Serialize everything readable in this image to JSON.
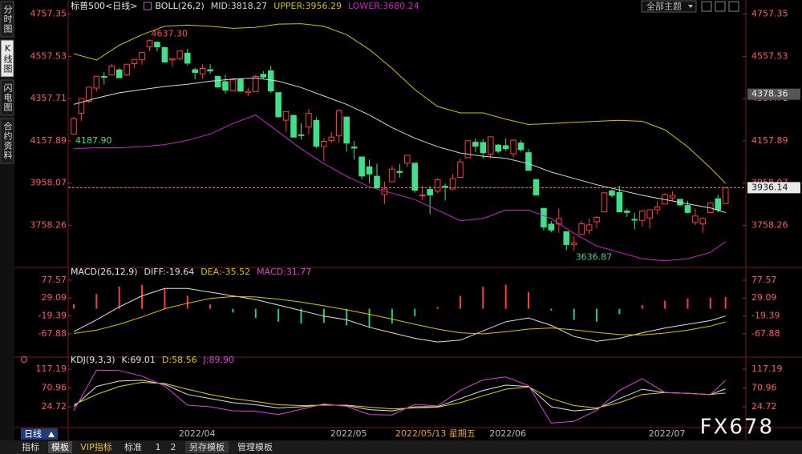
{
  "ui": {
    "sidebar": [
      "分时图",
      "K线图",
      "闪电图",
      "合约资料"
    ],
    "theme_button": "全部主题",
    "period_tab": "日线",
    "tabs": [
      "指标",
      "模板",
      "VIP指标",
      "标准",
      "1",
      "2",
      "另存模板",
      "管理模板"
    ],
    "watermark": "FX678"
  },
  "chart_data": [
    {
      "type": "candlestick",
      "title": "标普500<日线>",
      "indicator": "BOLL(26,2)",
      "categories": [
        null,
        null,
        null,
        null,
        null,
        null,
        null,
        null,
        null,
        null,
        null,
        null,
        null,
        "2022/04",
        null,
        null,
        null,
        null,
        null,
        null,
        null,
        null,
        null,
        null,
        null,
        null,
        null,
        null,
        null,
        null,
        null,
        null,
        null,
        "2022/05",
        null,
        null,
        null,
        null,
        null,
        null,
        null,
        null,
        null,
        null,
        null,
        null,
        null,
        null,
        null,
        null,
        null,
        null,
        null,
        null,
        "2022/06",
        null,
        null,
        null,
        null,
        null,
        null,
        null,
        null,
        null,
        null,
        null,
        null,
        null,
        null,
        null,
        null,
        null,
        null,
        null,
        null,
        "2022/07",
        null,
        null,
        null,
        null,
        null,
        null,
        null,
        null,
        null,
        null,
        null
      ],
      "open": [
        4188.8,
        4288.1,
        4345.1,
        4407.3,
        4462.4,
        4469.1,
        4493.1,
        4469.0,
        4522.7,
        4541.1,
        4602.9,
        4624.2,
        4599.0,
        4540.3,
        4547.0,
        4572.5,
        4494.2,
        4474.7,
        4494.2,
        4462.6,
        4437.6,
        4394.3,
        4449.1,
        4385.6,
        4390.6,
        4472.3,
        4489.2,
        4385.8,
        4255.3,
        4278.1,
        4186.5,
        4222.6,
        4253.8,
        4130.6,
        4159.8,
        4181.2,
        4270.4,
        4128.2,
        4081.3,
        4034.6,
        3990.1,
        3903.9,
        3963.9,
        4013.0,
        4052.0,
        4051.9,
        3899.0,
        3927.8,
        3919.4,
        3942.9,
        3929.6,
        3984.6,
        4077.4,
        4151.1,
        4149.8,
        4095.4,
        4137.6,
        4134.7,
        4096.5,
        4147.1,
        4101.7,
        3974.4,
        3838.2,
        3763.5,
        3764.1,
        3728.2,
        3665.9,
        3715.3,
        3733.9,
        3774.7,
        3821.8,
        3920.8,
        3913.0,
        3825.1,
        3786.0,
        3781.0,
        3792.6,
        3831.9,
        3858.9,
        3888.3,
        3880.9,
        3851.9,
        3771.4,
        3764.1,
        3818.0,
        3883.8,
        3860.7
      ],
      "high": [
        4271.0,
        4358.0,
        4412.7,
        4465.4,
        4481.8,
        4522.0,
        4501.1,
        4520.6,
        4546.0,
        4575.7,
        4637.3,
        4627.8,
        4603.1,
        4548.7,
        4583.5,
        4593.5,
        4503.9,
        4521.2,
        4520.4,
        4464.4,
        4471.0,
        4453.9,
        4453.0,
        4410.3,
        4471.0,
        4488.3,
        4512.9,
        4385.8,
        4299.0,
        4278.1,
        4240.7,
        4308.5,
        4269.7,
        4169.8,
        4200.1,
        4307.7,
        4270.4,
        4157.7,
        4081.3,
        4068.8,
        4049.1,
        3964.8,
        4038.9,
        4046.5,
        4090.7,
        4051.9,
        3945.9,
        3943.4,
        3981.9,
        3955.7,
        3999.3,
        4075.1,
        4158.5,
        4168.3,
        4166.5,
        4177.5,
        4142.7,
        4168.8,
        4164.9,
        4160.1,
        4119.1,
        3974.4,
        3838.2,
        3778.2,
        3837.6,
        3728.2,
        3707.7,
        3779.7,
        3790.9,
        3802.6,
        3913.7,
        3927.7,
        3945.9,
        3836.5,
        3818.0,
        3829.8,
        3832.2,
        3870.9,
        3910.6,
        3918.5,
        3880.9,
        3873.4,
        3838.0,
        3796.4,
        3863.6,
        3903.0,
        3940.0
      ],
      "low": [
        4187.9,
        4251.0,
        4335.7,
        4390.6,
        4424.3,
        4469.1,
        4455.8,
        4465.2,
        4501.1,
        4517.7,
        4581.3,
        4581.3,
        4530.4,
        4507.6,
        4539.2,
        4514.2,
        4450.0,
        4450.3,
        4474.6,
        4408.4,
        4381.3,
        4392.7,
        4392.5,
        4370.3,
        4390.6,
        4448.8,
        4384.5,
        4267.6,
        4200.8,
        4175.0,
        4162.9,
        4188.6,
        4124.3,
        4062.5,
        4147.1,
        4148.9,
        4106.0,
        4067.9,
        3975.5,
        3958.2,
        3928.8,
        3858.9,
        3963.9,
        3983.9,
        4033.9,
        3911.9,
        3876.6,
        3810.3,
        3909.0,
        3875.1,
        3925.0,
        3984.6,
        4077.4,
        4104.9,
        4073.9,
        4074.4,
        4098.7,
        4109.2,
        4080.2,
        4107.2,
        4017.2,
        3900.2,
        3734.3,
        3724.6,
        3722.3,
        3639.8,
        3636.87,
        3715.3,
        3717.7,
        3743.5,
        3821.8,
        3889.7,
        3820.1,
        3799.0,
        3738.7,
        3752.1,
        3742.1,
        3809.4,
        3858.9,
        3872.4,
        3847.2,
        3814.5,
        3759.3,
        3722.0,
        3818.0,
        3818.6,
        3860.7
      ],
      "close": [
        4262.5,
        4357.9,
        4411.7,
        4463.1,
        4461.2,
        4511.6,
        4456.2,
        4520.2,
        4543.1,
        4575.5,
        4631.6,
        4602.5,
        4530.4,
        4545.9,
        4582.6,
        4525.1,
        4481.2,
        4500.2,
        4488.3,
        4412.5,
        4397.5,
        4446.6,
        4392.6,
        4391.7,
        4462.2,
        4459.5,
        4393.7,
        4271.8,
        4296.1,
        4175.2,
        4183.9,
        4287.5,
        4131.9,
        4155.4,
        4175.5,
        4300.2,
        4146.9,
        4123.3,
        3991.2,
        4001.1,
        3935.2,
        3930.1,
        4023.9,
        4008.0,
        4088.9,
        3923.7,
        3900.8,
        3901.4,
        3973.8,
        3941.5,
        3978.7,
        4057.8,
        4158.2,
        4132.2,
        4101.2,
        4176.8,
        4108.5,
        4121.4,
        4160.7,
        4115.8,
        4017.8,
        3900.9,
        3749.6,
        3735.5,
        3790.0,
        3666.8,
        3674.8,
        3764.8,
        3759.9,
        3795.7,
        3911.7,
        3900.1,
        3821.6,
        3818.8,
        3785.4,
        3825.3,
        3831.4,
        3845.1,
        3903.0,
        3899.4,
        3854.4,
        3818.8,
        3801.8,
        3790.4,
        3863.2,
        3831.0,
        3936.14
      ],
      "up_color": "#ff3c3c",
      "down_color": "#3ee08a",
      "series": [
        {
          "name": "MID:3818.27",
          "color": "#d8d8d8",
          "x": [
            0,
            3,
            6,
            9,
            12,
            15,
            18,
            21,
            24,
            27,
            30,
            33,
            36,
            39,
            42,
            45,
            48,
            51,
            54,
            57,
            60,
            63,
            66,
            69,
            72,
            75,
            78,
            81,
            84,
            86
          ],
          "values": [
            4330,
            4360,
            4385,
            4400,
            4415,
            4425,
            4440,
            4450,
            4455,
            4440,
            4410,
            4370,
            4330,
            4280,
            4220,
            4170,
            4130,
            4100,
            4085,
            4075,
            4050,
            4010,
            3980,
            3950,
            3925,
            3900,
            3880,
            3860,
            3840,
            3818.27
          ]
        },
        {
          "name": "UPPER:3956.29",
          "color": "#d4c000",
          "x": [
            0,
            3,
            6,
            9,
            12,
            15,
            18,
            21,
            24,
            27,
            30,
            33,
            36,
            39,
            42,
            45,
            48,
            51,
            54,
            57,
            60,
            63,
            66,
            69,
            72,
            75,
            78,
            81,
            84,
            86
          ],
          "values": [
            4570,
            4540,
            4610,
            4660,
            4700,
            4705,
            4700,
            4690,
            4695,
            4710,
            4712,
            4700,
            4660,
            4590,
            4500,
            4400,
            4320,
            4290,
            4290,
            4260,
            4235,
            4240,
            4245,
            4250,
            4255,
            4250,
            4210,
            4130,
            4030,
            3956.29
          ]
        },
        {
          "name": "LOWER:3680.24",
          "color": "#d020d0",
          "x": [
            0,
            3,
            6,
            9,
            12,
            15,
            18,
            21,
            24,
            27,
            30,
            33,
            36,
            39,
            42,
            45,
            48,
            51,
            54,
            57,
            60,
            63,
            66,
            69,
            72,
            75,
            78,
            81,
            84,
            86
          ],
          "values": [
            4120,
            4125,
            4125,
            4130,
            4140,
            4160,
            4190,
            4240,
            4280,
            4200,
            4120,
            4050,
            3990,
            3940,
            3910,
            3880,
            3830,
            3780,
            3790,
            3830,
            3830,
            3790,
            3720,
            3660,
            3630,
            3600,
            3590,
            3600,
            3630,
            3680.24
          ]
        }
      ],
      "ylim": [
        3570,
        4790
      ],
      "yticks": [
        4757.35,
        4557.53,
        4357.71,
        4157.89,
        3958.07,
        3758.26
      ],
      "last_price": 3936.14,
      "last_price_color": "#e8902e",
      "cursor_price": 4378.36,
      "cursor_date": "2022/05/13 星期五",
      "annotations": [
        {
          "value": 4637.3,
          "label": "4637.30",
          "color": "#ff5050"
        },
        {
          "value": 4187.9,
          "label": "4187.90",
          "color": "#40e080"
        },
        {
          "value": 3636.87,
          "label": "3636.87",
          "color": "#40d0a0"
        }
      ]
    },
    {
      "type": "macd",
      "indicator": "MACD(26,12,9)",
      "series": [
        {
          "name": "DIFF:-19.64",
          "color": "#e0e0e0",
          "kind": "line",
          "x": [
            0,
            3,
            6,
            9,
            12,
            15,
            18,
            21,
            24,
            27,
            30,
            33,
            36,
            39,
            42,
            45,
            48,
            51,
            54,
            57,
            60,
            63,
            66,
            69,
            72,
            75,
            78,
            81,
            84,
            86
          ],
          "values": [
            -62,
            -30,
            5,
            35,
            55,
            55,
            45,
            35,
            25,
            10,
            -5,
            -20,
            -30,
            -50,
            -65,
            -80,
            -90,
            -85,
            -60,
            -35,
            -25,
            -45,
            -75,
            -88,
            -80,
            -65,
            -52,
            -42,
            -32,
            -19.64
          ]
        },
        {
          "name": "DEA:-35.52",
          "color": "#e0c000",
          "kind": "line",
          "x": [
            0,
            3,
            6,
            9,
            12,
            15,
            18,
            21,
            24,
            27,
            30,
            33,
            36,
            39,
            42,
            45,
            48,
            51,
            54,
            57,
            60,
            63,
            66,
            69,
            72,
            75,
            78,
            81,
            84,
            86
          ],
          "values": [
            -67,
            -58,
            -42,
            -22,
            0,
            15,
            28,
            33,
            32,
            26,
            18,
            8,
            -3,
            -15,
            -28,
            -42,
            -55,
            -65,
            -68,
            -62,
            -55,
            -52,
            -57,
            -64,
            -70,
            -71,
            -66,
            -58,
            -47,
            -35.52
          ]
        },
        {
          "name": "MACD:31.77",
          "color": "#e040e0",
          "kind": "bar",
          "up_color": "#ff3c3c",
          "down_color": "#2ecc71",
          "x": [
            0,
            3,
            6,
            9,
            12,
            15,
            18,
            21,
            24,
            27,
            30,
            33,
            36,
            39,
            42,
            45,
            48,
            51,
            54,
            57,
            60,
            63,
            66,
            69,
            72,
            75,
            78,
            81,
            84,
            86
          ],
          "values": [
            12,
            40,
            60,
            65,
            55,
            35,
            12,
            -10,
            -25,
            -35,
            -40,
            -38,
            -45,
            -50,
            -40,
            -20,
            5,
            35,
            60,
            65,
            45,
            -5,
            -30,
            -35,
            -15,
            10,
            22,
            28,
            30,
            31.77
          ]
        }
      ],
      "ylim": [
        -118,
        99
      ],
      "yticks": [
        77.57,
        29.09,
        -19.39,
        -67.88
      ]
    },
    {
      "type": "kdj",
      "indicator": "KDJ(9,3,3)",
      "series": [
        {
          "name": "K:69.01",
          "color": "#e0e0e0",
          "kind": "line",
          "x": [
            0,
            3,
            6,
            9,
            12,
            15,
            18,
            21,
            24,
            27,
            30,
            33,
            36,
            39,
            42,
            45,
            48,
            51,
            54,
            57,
            60,
            63,
            66,
            69,
            72,
            75,
            78,
            81,
            84,
            86
          ],
          "values": [
            25,
            75,
            88,
            90,
            80,
            55,
            45,
            35,
            30,
            22,
            25,
            30,
            28,
            18,
            15,
            25,
            25,
            45,
            65,
            78,
            75,
            25,
            15,
            20,
            45,
            68,
            60,
            58,
            55,
            69.01
          ]
        },
        {
          "name": "D:58.56",
          "color": "#e0d000",
          "kind": "line",
          "x": [
            0,
            3,
            6,
            9,
            12,
            15,
            18,
            21,
            24,
            27,
            30,
            33,
            36,
            39,
            42,
            45,
            48,
            51,
            54,
            57,
            60,
            63,
            66,
            69,
            72,
            75,
            78,
            81,
            84,
            86
          ],
          "values": [
            30,
            55,
            75,
            85,
            82,
            68,
            55,
            45,
            38,
            30,
            28,
            29,
            29,
            24,
            20,
            22,
            24,
            35,
            52,
            68,
            74,
            45,
            28,
            22,
            35,
            55,
            60,
            58,
            55,
            58.56
          ]
        },
        {
          "name": "J:89.90",
          "color": "#e040e0",
          "kind": "line",
          "x": [
            0,
            3,
            6,
            9,
            12,
            15,
            18,
            21,
            24,
            27,
            30,
            33,
            36,
            39,
            42,
            45,
            48,
            51,
            54,
            57,
            60,
            63,
            66,
            69,
            72,
            75,
            78,
            81,
            84,
            86
          ],
          "values": [
            15,
            115,
            114,
            100,
            76,
            29,
            25,
            15,
            14,
            6,
            19,
            32,
            26,
            6,
            5,
            31,
            27,
            65,
            91,
            98,
            77,
            -15,
            -11,
            16,
            65,
            94,
            60,
            58,
            55,
            89.9
          ]
        }
      ],
      "ylim": [
        -28,
        135
      ],
      "yticks": [
        117.19,
        70.96,
        24.72
      ]
    }
  ]
}
